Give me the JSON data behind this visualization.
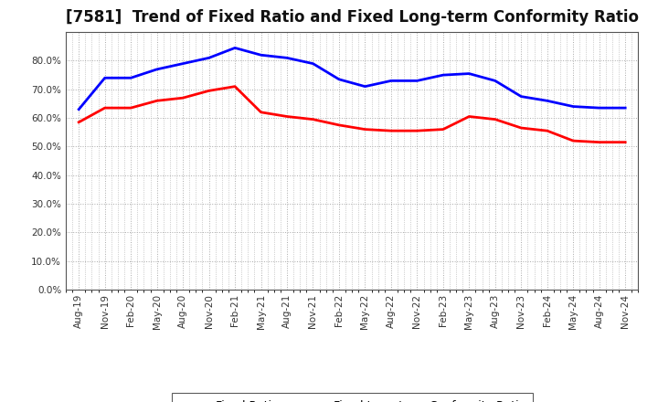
{
  "title": "[7581]  Trend of Fixed Ratio and Fixed Long-term Conformity Ratio",
  "x_labels": [
    "Aug-19",
    "Nov-19",
    "Feb-20",
    "May-20",
    "Aug-20",
    "Nov-20",
    "Feb-21",
    "May-21",
    "Aug-21",
    "Nov-21",
    "Feb-22",
    "May-22",
    "Aug-22",
    "Nov-22",
    "Feb-23",
    "May-23",
    "Aug-23",
    "Nov-23",
    "Feb-24",
    "May-24",
    "Aug-24",
    "Nov-24"
  ],
  "fixed_ratio": [
    0.63,
    0.74,
    0.74,
    0.77,
    0.79,
    0.81,
    0.845,
    0.82,
    0.81,
    0.79,
    0.735,
    0.71,
    0.73,
    0.73,
    0.75,
    0.755,
    0.73,
    0.675,
    0.66,
    0.64,
    0.635,
    0.635
  ],
  "fixed_lt_ratio": [
    0.585,
    0.635,
    0.635,
    0.66,
    0.67,
    0.695,
    0.71,
    0.62,
    0.605,
    0.595,
    0.575,
    0.56,
    0.555,
    0.555,
    0.56,
    0.605,
    0.595,
    0.565,
    0.555,
    0.52,
    0.515,
    0.515
  ],
  "fixed_ratio_color": "#0000FF",
  "fixed_lt_ratio_color": "#FF0000",
  "ylim": [
    0.0,
    0.9
  ],
  "yticks": [
    0.0,
    0.1,
    0.2,
    0.3,
    0.4,
    0.5,
    0.6,
    0.7,
    0.8
  ],
  "background_color": "#FFFFFF",
  "plot_bg_color": "#FFFFFF",
  "grid_color": "#AAAAAA",
  "legend_fixed_ratio": "Fixed Ratio",
  "legend_fixed_lt_ratio": "Fixed Long-term Conformity Ratio",
  "title_fontsize": 12,
  "line_width": 2.0
}
